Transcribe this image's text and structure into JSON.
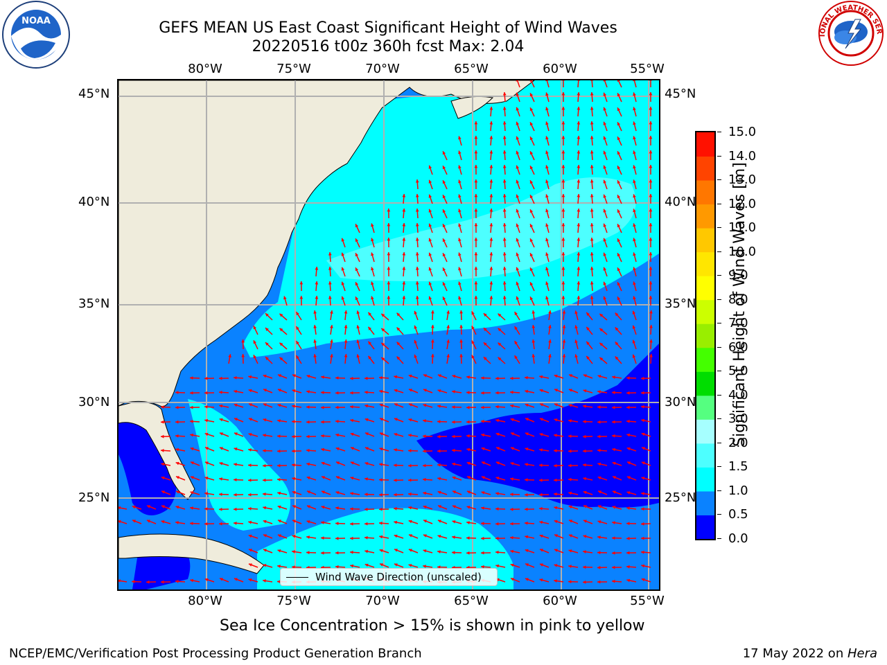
{
  "title": {
    "line1": "GEFS MEAN US East Coast Significant Height of Wind Waves",
    "line2": "20220516 t00z 360h fcst   Max: 2.04"
  },
  "map": {
    "lon_labels": [
      "80°W",
      "75°W",
      "70°W",
      "65°W",
      "60°W",
      "55°W"
    ],
    "lat_labels": [
      "45°N",
      "40°N",
      "35°N",
      "30°N",
      "25°N"
    ],
    "lon_range": [
      -85,
      -54
    ],
    "lat_range": [
      20.5,
      46
    ],
    "legend_label": "Wind Wave Direction (unscaled)",
    "colors": {
      "land": "#efecdc",
      "arrow": "#ff0000",
      "grid": "#b0b0b0"
    }
  },
  "colorbar": {
    "label": "Significant Height of Wind Waves [m]",
    "ticks": [
      "0.0",
      "0.5",
      "1.0",
      "1.5",
      "2.0",
      "3.0",
      "4.0",
      "5.0",
      "6.0",
      "7.0",
      "8.0",
      "9.0",
      "10.0",
      "11.0",
      "12.0",
      "13.0",
      "14.0",
      "15.0"
    ],
    "colors": [
      "#0000ff",
      "#0a82ff",
      "#00ffff",
      "#4dffff",
      "#a6ffff",
      "#55ff80",
      "#00dd00",
      "#44ff00",
      "#99ee00",
      "#ccff00",
      "#ffff00",
      "#ffe600",
      "#ffc800",
      "#ff9900",
      "#ff7700",
      "#ff4400",
      "#ff1100"
    ]
  },
  "logos": {
    "noaa": "NOAA",
    "nws": "NATIONAL WEATHER SERVICE"
  },
  "sea_ice_note": "Sea Ice Concentration > 15% is shown in pink to yellow",
  "footer": {
    "left": "NCEP/EMC/Verification Post Processing Product Generation Branch",
    "right_date": "17 May 2022 on ",
    "right_machine": "Hera"
  }
}
